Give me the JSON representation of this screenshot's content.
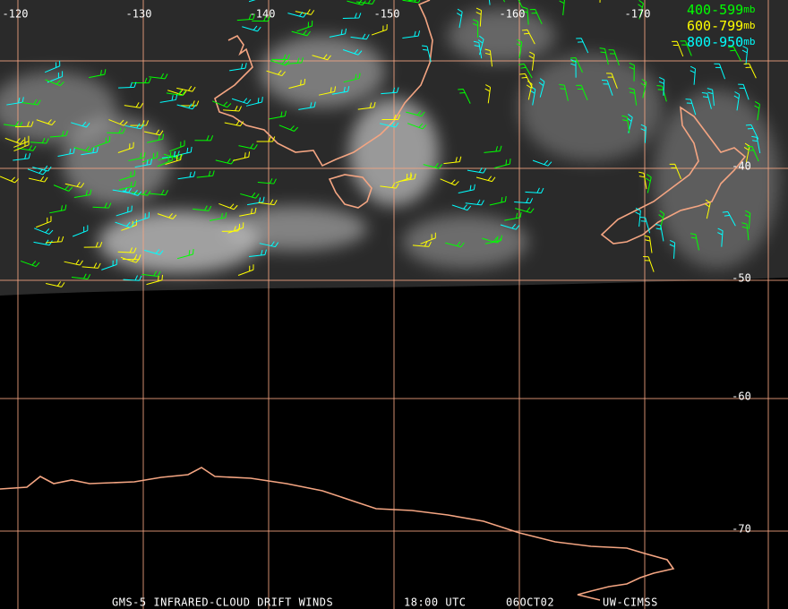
{
  "map": {
    "longitude_labels": [
      "-120",
      "-130",
      "-140",
      "-150",
      "-160",
      "-170"
    ],
    "latitude_labels": [
      "-40",
      "-50",
      "-60",
      "-70"
    ],
    "legend": [
      {
        "range": "400-599",
        "unit": "mb",
        "color": "#00ff00"
      },
      {
        "range": "600-799",
        "unit": "mb",
        "color": "#ffff00"
      },
      {
        "range": "800-950",
        "unit": "mb",
        "color": "#00ffff"
      }
    ],
    "footer": [
      "GMS-5 INFRARED-CLOUD DRIFT WINDS",
      "18:00 UTC",
      "06OCT02",
      "UW-CIMSS"
    ]
  }
}
